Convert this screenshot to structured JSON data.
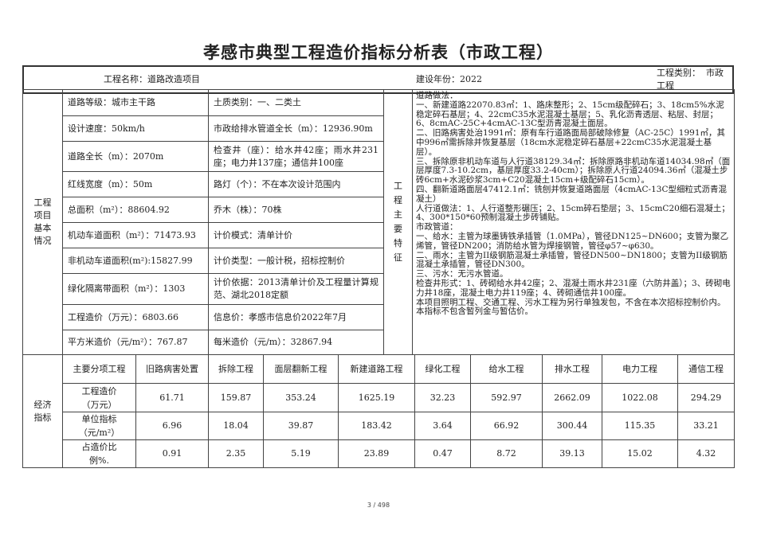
{
  "title": "孝感市典型工程造价指标分析表（市政工程）",
  "header": {
    "name": "工程名称：道路改造项目",
    "year": "建设年份：2022",
    "type_label": "工程类别：",
    "type_value": "市政工程"
  },
  "basic": {
    "section_label": "工程项目基本情况",
    "rows": [
      [
        "道路等级：城市主干路",
        "土质类别：一、二类土"
      ],
      [
        "设计速度：50km/h",
        "市政给排水管道全长（m）：12936.90m"
      ],
      [
        "道路全长（m）：2070m",
        "检查井（座）：给水井42座；雨水井231座；电力井137座；通信井100座"
      ],
      [
        "红线宽度（m）：50m",
        "路灯（个）：不在本次设计范围内"
      ],
      [
        "总面积（m²）：88604.92",
        "乔木（株）：70株"
      ],
      [
        "机动车道面积（m²）：71473.93",
        "计价模式：清单计价"
      ],
      [
        "非机动车道面积(m²):15827.99",
        "计价类型：一般计税，招标控制价"
      ],
      [
        "绿化隔离带面积（m²）：1303",
        "计价依据：2013清单计价及工程量计算规范、湖北2018定额"
      ],
      [
        "工程造价（万元）：6803.66",
        "信息价：孝感市信息价2022年7月"
      ],
      [
        "平方米造价（元/m²）：767.87",
        "每米造价（元/m）：32867.94"
      ]
    ]
  },
  "features": {
    "label": "工程主要特征",
    "lines": [
      "道路做法：",
      "一、新建道路22070.83㎡：1、路床整形；2、15cm级配碎石；3、18cm5%水泥稳定碎石基层；4、22cmC35水泥混凝土基层；5、乳化沥青透层、粘层、封层；6、8cmAC-25C+4cmAC-13C型沥青混凝土面层。",
      "二、旧路病害处治1991㎡：原有车行道路面局部破除修复（AC-25C）1991㎡，其中996㎡需拆除并恢复基层（18cm水泥稳定碎石基层+22cmC35水泥混凝土基层）。",
      "三、拆除原非机动车道与人行道38129.34㎡：拆除原路非机动车道14034.98㎡（面层厚度7.3-10.2cm，基层厚度33.2-40cm）；拆除原人行道24094.36㎡（混凝土步砖6cm+水泥砂浆3cm+C20混凝土15cm+级配碎石15cm）。",
      "四、翻新道路面层47412.1㎡：铣刨并恢复道路面层（4cmAC-13C型细粒式沥青混凝土）",
      "人行道做法：1、人行道整形碾压；2、15cm碎石垫层；3、15cmC20细石混凝土；4、300*150*60预制混凝土步砖铺贴。",
      "市政管道：",
      "一、给水：主管为球墨铸铁承插管（1.0MPa），管径DN125~DN600；支管为聚乙烯管，管径DN200；消防给水管为焊接钢管，管径φ57~φ630。",
      "二、雨水：主管为II级钢筋混凝土承插管，管径DN500~DN1800；支管为II级钢筋混凝土承插管，管径DN300。",
      "三、污水：无污水管道。",
      "检查井形式：1、砖砌给水井42座；2、混凝土雨水井231座（六防井盖）；3、砖砌电力井18座，混凝土电力井119座；4、砖砌通信井100座。",
      "本项目照明工程、交通工程、污水工程为另行单独发包，不含在本次招标控制价内。",
      "本指标不包含暂列金与暂估价。"
    ]
  },
  "economic": {
    "label": "经济指标",
    "columns": [
      "主要分项工程",
      "旧路病害处置",
      "拆除工程",
      "面层翻新工程",
      "新建道路工程",
      "绿化工程",
      "给水工程",
      "排水工程",
      "电力工程",
      "通信工程"
    ],
    "rows": [
      [
        "工程造价（万元）",
        "61.71",
        "159.87",
        "353.24",
        "1625.19",
        "32.23",
        "592.97",
        "2662.09",
        "1022.08",
        "294.29"
      ],
      [
        "单位指标（元/m²）",
        "6.96",
        "18.04",
        "39.87",
        "183.42",
        "3.64",
        "66.92",
        "300.44",
        "115.35",
        "33.21"
      ],
      [
        "占造价比例%.",
        "0.91",
        "2.35",
        "5.19",
        "23.89",
        "0.47",
        "8.72",
        "39.13",
        "15.02",
        "4.32"
      ]
    ]
  },
  "page_indicator": "3 / 498"
}
